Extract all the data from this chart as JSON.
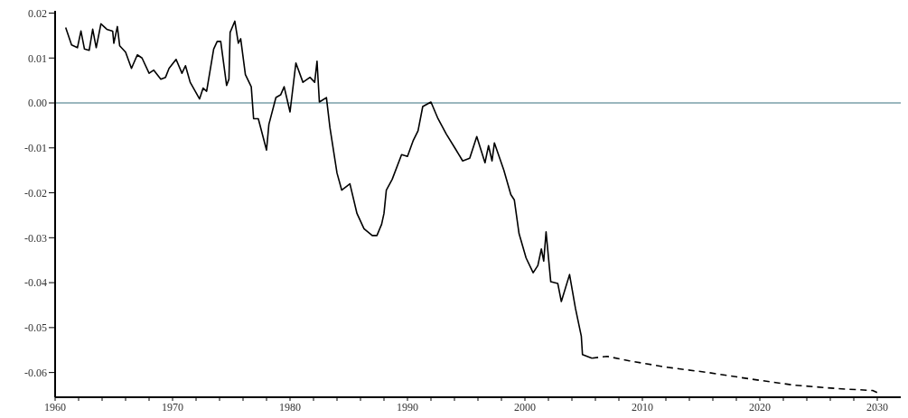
{
  "chart_data": {
    "type": "line",
    "xlim": [
      1960,
      2032
    ],
    "xticks": [
      1960,
      {
        "value": 1962,
        "label": null
      },
      {
        "value": 1964,
        "label": null
      },
      {
        "value": 1966,
        "label": null
      },
      {
        "value": 1968,
        "label": null
      },
      1970,
      {
        "value": 1972,
        "label": null
      },
      {
        "value": 1974,
        "label": null
      },
      {
        "value": 1976,
        "label": null
      },
      {
        "value": 1978,
        "label": null
      },
      1980,
      {
        "value": 1982,
        "label": null
      },
      {
        "value": 1984,
        "label": null
      },
      {
        "value": 1986,
        "label": null
      },
      {
        "value": 1988,
        "label": null
      },
      1990,
      {
        "value": 1992,
        "label": null
      },
      {
        "value": 1994,
        "label": null
      },
      {
        "value": 1996,
        "label": null
      },
      {
        "value": 1998,
        "label": null
      },
      2000,
      {
        "value": 2002,
        "label": null
      },
      {
        "value": 2004,
        "label": null
      },
      {
        "value": 2006,
        "label": null
      },
      {
        "value": 2008,
        "label": null
      },
      2010,
      {
        "value": 2012,
        "label": null
      },
      {
        "value": 2014,
        "label": null
      },
      {
        "value": 2016,
        "label": null
      },
      {
        "value": 2018,
        "label": null
      },
      2020,
      {
        "value": 2022,
        "label": null
      },
      {
        "value": 2024,
        "label": null
      },
      {
        "value": 2026,
        "label": null
      },
      {
        "value": 2028,
        "label": null
      },
      2030
    ],
    "ylim": [
      -0.0655,
      0.0205
    ],
    "yticks": [
      -0.06,
      -0.05,
      -0.04,
      -0.03,
      -0.02,
      -0.01,
      {
        "value": 0,
        "label": "0.00"
      },
      0.01,
      0.02
    ],
    "grid": false,
    "marker": "none",
    "ref_lines": [
      {
        "axis": "y",
        "value": 0,
        "color": "#7a9fa8"
      }
    ],
    "series": [
      {
        "color": "#000000",
        "line_style": "solid",
        "x": [
          1960.9,
          1961.4,
          1961.9,
          1962.2,
          1962.5,
          1962.9,
          1963.2,
          1963.5,
          1963.9,
          1964.4,
          1964.9,
          1965.0,
          1965.3,
          1965.5,
          1966.0,
          1966.5,
          1967.0,
          1967.4,
          1968.0,
          1968.4,
          1969.0,
          1969.4,
          1969.7,
          1970.3,
          1970.8,
          1971.1,
          1971.5,
          1972.3,
          1972.6,
          1972.9,
          1973.5,
          1973.8,
          1974.1,
          1974.6,
          1974.8,
          1974.9,
          1975.3,
          1975.6,
          1975.8,
          1976.2,
          1976.7,
          1976.9,
          1977.3,
          1978.0,
          1978.2,
          1978.8,
          1979.2,
          1979.5,
          1980.0,
          1980.5,
          1981.1,
          1981.7,
          1982.1,
          1982.3,
          1982.5,
          1983.1,
          1983.4,
          1984.0,
          1984.4,
          1985.1,
          1985.7,
          1986.3,
          1987.0,
          1987.4,
          1987.8,
          1988.0,
          1988.2,
          1988.7,
          1989.5,
          1990.0,
          1990.5,
          1990.9,
          1991.3,
          1992.0,
          1992.6,
          1993.3,
          1994.1,
          1994.7,
          1995.3,
          1995.9,
          1996.6,
          1996.9,
          1997.2,
          1997.4,
          1998.2,
          1998.8,
          1999.1,
          1999.5,
          2000.1,
          2000.7,
          2001.1,
          2001.4,
          2001.6,
          2001.8,
          2002.2,
          2002.8,
          2003.1,
          2003.8,
          2004.3,
          2004.8,
          2004.9,
          2005.7
        ],
        "values": [
          0.0168,
          0.0129,
          0.0123,
          0.016,
          0.012,
          0.0117,
          0.0164,
          0.0123,
          0.0176,
          0.0164,
          0.016,
          0.0133,
          0.017,
          0.0127,
          0.0113,
          0.0077,
          0.0107,
          0.01,
          0.0066,
          0.0073,
          0.0053,
          0.0057,
          0.0077,
          0.0097,
          0.0066,
          0.0083,
          0.0046,
          0.0009,
          0.0033,
          0.0026,
          0.012,
          0.0137,
          0.0137,
          0.0039,
          0.0053,
          0.0157,
          0.0182,
          0.0133,
          0.0143,
          0.0063,
          0.0036,
          -0.0035,
          -0.0035,
          -0.0105,
          -0.0048,
          0.0012,
          0.0018,
          0.0036,
          -0.002,
          0.0089,
          0.0046,
          0.0057,
          0.0046,
          0.0093,
          0.0002,
          0.0012,
          -0.0055,
          -0.0156,
          -0.0194,
          -0.018,
          -0.0246,
          -0.028,
          -0.0295,
          -0.0295,
          -0.027,
          -0.0246,
          -0.0194,
          -0.017,
          -0.0115,
          -0.0119,
          -0.0083,
          -0.0062,
          -0.0008,
          0.0002,
          -0.0035,
          -0.0069,
          -0.0103,
          -0.0129,
          -0.0123,
          -0.0075,
          -0.0133,
          -0.0095,
          -0.0129,
          -0.0089,
          -0.0149,
          -0.0204,
          -0.0216,
          -0.0291,
          -0.0345,
          -0.0378,
          -0.0362,
          -0.0325,
          -0.0352,
          -0.0287,
          -0.0398,
          -0.0402,
          -0.0442,
          -0.0382,
          -0.0457,
          -0.0519,
          -0.056,
          -0.0568
        ]
      },
      {
        "color": "#000000",
        "line_style": "dashed",
        "x": [
          2005.7,
          2007.0,
          2008.9,
          2012.0,
          2015.6,
          2019.1,
          2022.9,
          2026.7,
          2029.6,
          2030.1
        ],
        "values": [
          -0.0568,
          -0.0564,
          -0.0574,
          -0.0588,
          -0.06,
          -0.0614,
          -0.0628,
          -0.0636,
          -0.064,
          -0.0646
        ]
      }
    ]
  }
}
